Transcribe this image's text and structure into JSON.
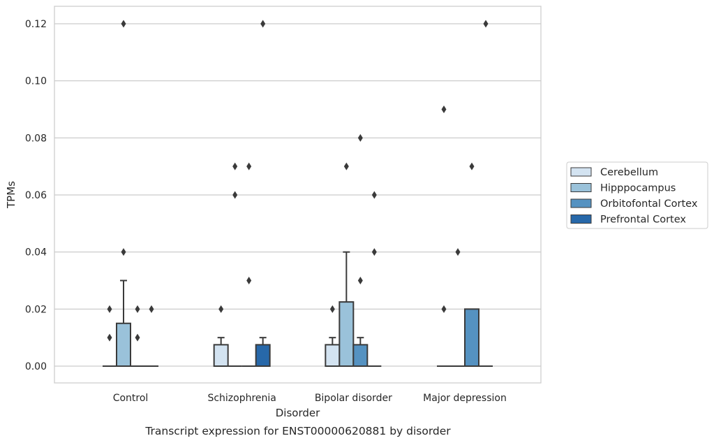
{
  "chart_data": {
    "type": "box",
    "title": "",
    "caption": "Transcript expression for ENST00000620881 by disorder",
    "xlabel": "Disorder",
    "ylabel": "TPMs",
    "ylim": [
      -0.006,
      0.126
    ],
    "yticks": [
      "0.00",
      "0.02",
      "0.04",
      "0.06",
      "0.08",
      "0.10",
      "0.12"
    ],
    "grid": "horizontal",
    "legend_position": "right",
    "categories": [
      "Control",
      "Schizophrenia",
      "Bipolar disorder",
      "Major depression"
    ],
    "series": [
      {
        "name": "Cerebellum",
        "color": "#d3e3f1",
        "boxes": [
          {
            "min": 0,
            "q1": 0,
            "median": 0,
            "q3": 0,
            "max": 0,
            "outliers": [
              0.01,
              0.02
            ]
          },
          {
            "min": 0,
            "q1": 0,
            "median": 0,
            "q3": 0.0075,
            "max": 0.01,
            "outliers": [
              0.02
            ]
          },
          {
            "min": 0,
            "q1": 0,
            "median": 0,
            "q3": 0.0075,
            "max": 0.01,
            "outliers": [
              0.02
            ]
          },
          {
            "min": 0,
            "q1": 0,
            "median": 0,
            "q3": 0,
            "max": 0,
            "outliers": [
              0.02,
              0.09
            ]
          }
        ]
      },
      {
        "name": "Hipppocampus",
        "color": "#9ac2da",
        "boxes": [
          {
            "min": 0,
            "q1": 0,
            "median": 0,
            "q3": 0.015,
            "max": 0.03,
            "outliers": [
              0.04,
              0.12
            ]
          },
          {
            "min": 0,
            "q1": 0,
            "median": 0,
            "q3": 0,
            "max": 0,
            "outliers": [
              0.06,
              0.07
            ]
          },
          {
            "min": 0,
            "q1": 0,
            "median": 0,
            "q3": 0.0225,
            "max": 0.04,
            "outliers": [
              0.07
            ]
          },
          {
            "min": 0,
            "q1": 0,
            "median": 0,
            "q3": 0,
            "max": 0,
            "outliers": [
              0.04
            ]
          }
        ]
      },
      {
        "name": "Orbitofontal Cortex",
        "color": "#5592c1",
        "boxes": [
          {
            "min": 0,
            "q1": 0,
            "median": 0,
            "q3": 0,
            "max": 0,
            "outliers": [
              0.01,
              0.02
            ]
          },
          {
            "min": 0,
            "q1": 0,
            "median": 0,
            "q3": 0,
            "max": 0,
            "outliers": [
              0.03,
              0.07
            ]
          },
          {
            "min": 0,
            "q1": 0,
            "median": 0,
            "q3": 0.0075,
            "max": 0.01,
            "outliers": [
              0.03,
              0.08
            ]
          },
          {
            "min": 0,
            "q1": 0,
            "median": 0,
            "q3": 0.02,
            "max": 0.02,
            "outliers": [
              0.07
            ]
          }
        ]
      },
      {
        "name": "Prefrontal Cortex",
        "color": "#2768a9",
        "boxes": [
          {
            "min": 0,
            "q1": 0,
            "median": 0,
            "q3": 0,
            "max": 0,
            "outliers": [
              0.02
            ]
          },
          {
            "min": 0,
            "q1": 0,
            "median": 0,
            "q3": 0.0075,
            "max": 0.01,
            "outliers": [
              0.12
            ]
          },
          {
            "min": 0,
            "q1": 0,
            "median": 0,
            "q3": 0,
            "max": 0,
            "outliers": [
              0.04,
              0.06
            ]
          },
          {
            "min": 0,
            "q1": 0,
            "median": 0,
            "q3": 0,
            "max": 0,
            "outliers": [
              0.12
            ]
          }
        ]
      }
    ]
  }
}
